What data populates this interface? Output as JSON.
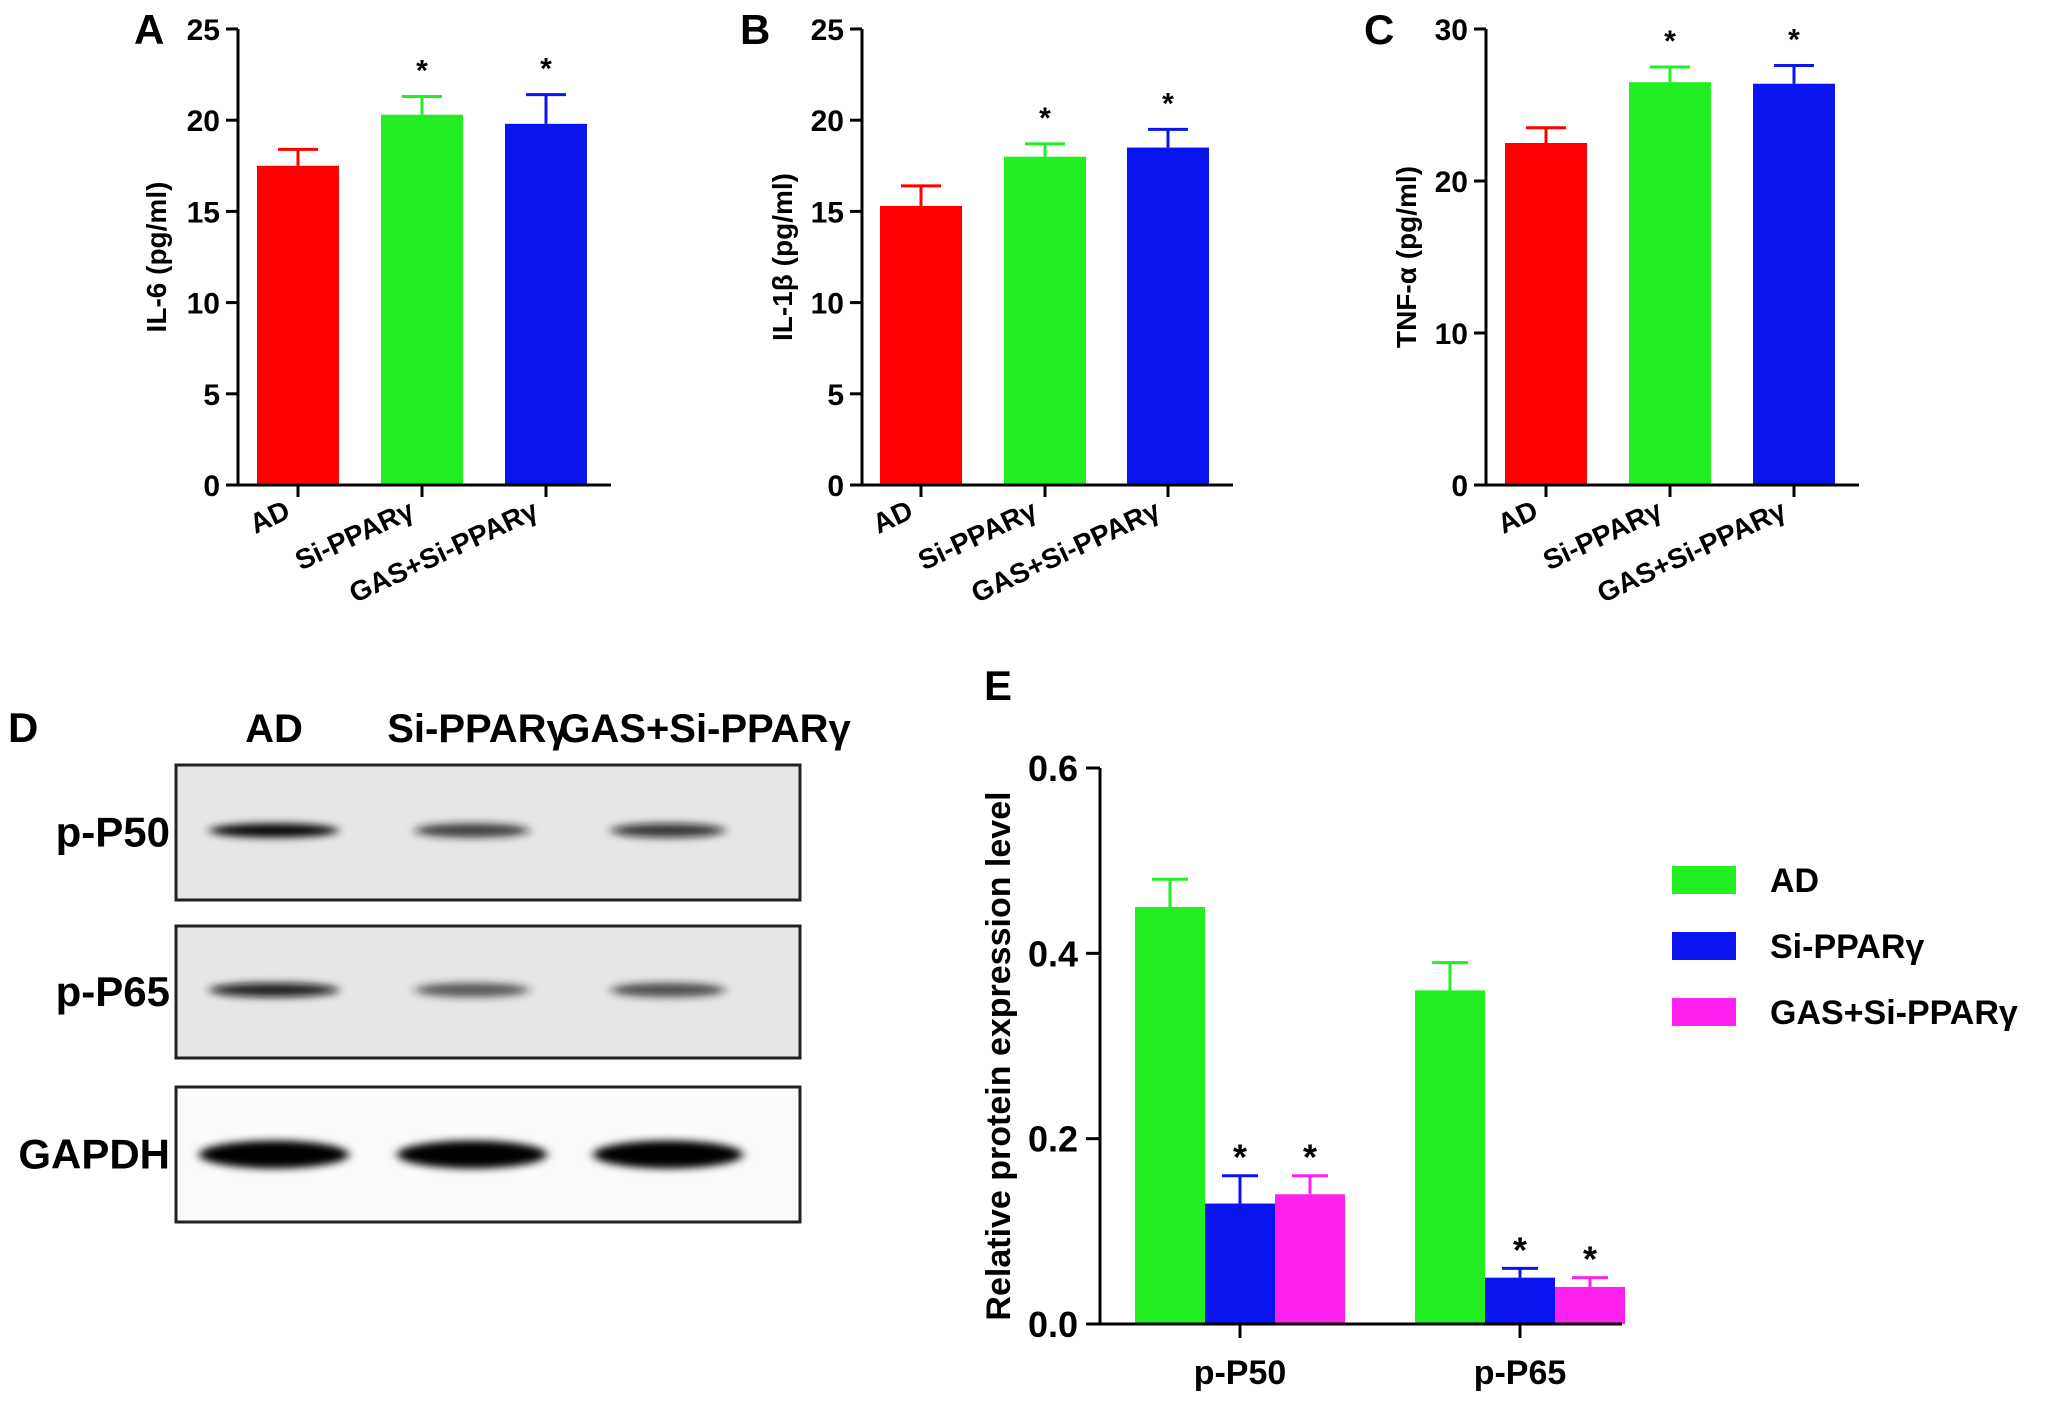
{
  "panels": {
    "A": "A",
    "B": "B",
    "C": "C",
    "D": "D",
    "E": "E"
  },
  "colors": {
    "red": "#ff0000",
    "green": "#22ee22",
    "blue": "#0a14ee",
    "magenta": "#ff22ee",
    "axis": "#000000"
  },
  "blot": {
    "lanes": [
      "AD",
      "Si-PPARγ",
      "GAS+Si-PPARγ"
    ],
    "rows": [
      {
        "label": "p-P50",
        "intensity": [
          0.95,
          0.7,
          0.72
        ]
      },
      {
        "label": "p-P65",
        "intensity": [
          0.88,
          0.55,
          0.6
        ]
      },
      {
        "label": "GAPDH",
        "intensity": [
          1.0,
          1.0,
          1.0
        ]
      }
    ]
  },
  "chart_data": [
    {
      "id": "A",
      "type": "bar",
      "title": "",
      "xlabel": "",
      "ylabel": "IL-6 (pg/ml)",
      "categories": [
        "AD",
        "Si-PPARγ",
        "GAS+Si-PPARγ"
      ],
      "values": [
        17.5,
        20.3,
        19.8
      ],
      "errors": [
        0.9,
        1.0,
        1.6
      ],
      "significance": [
        "",
        "*",
        "*"
      ],
      "bar_colors": [
        "#ff0000",
        "#22ee22",
        "#0a14ee"
      ],
      "ylim": [
        0,
        25
      ],
      "yticks": [
        0,
        5,
        10,
        15,
        20,
        25
      ],
      "grid": false
    },
    {
      "id": "B",
      "type": "bar",
      "title": "",
      "xlabel": "",
      "ylabel": "IL-1β (pg/ml)",
      "categories": [
        "AD",
        "Si-PPARγ",
        "GAS+Si-PPARγ"
      ],
      "values": [
        15.3,
        18.0,
        18.5
      ],
      "errors": [
        1.1,
        0.7,
        1.0
      ],
      "significance": [
        "",
        "*",
        "*"
      ],
      "bar_colors": [
        "#ff0000",
        "#22ee22",
        "#0a14ee"
      ],
      "ylim": [
        0,
        25
      ],
      "yticks": [
        0,
        5,
        10,
        15,
        20,
        25
      ],
      "grid": false
    },
    {
      "id": "C",
      "type": "bar",
      "title": "",
      "xlabel": "",
      "ylabel": "TNF-α (pg/ml)",
      "categories": [
        "AD",
        "Si-PPARγ",
        "GAS+Si-PPARγ"
      ],
      "values": [
        22.5,
        26.5,
        26.4
      ],
      "errors": [
        1.0,
        1.0,
        1.2
      ],
      "significance": [
        "",
        "*",
        "*"
      ],
      "bar_colors": [
        "#ff0000",
        "#22ee22",
        "#0a14ee"
      ],
      "ylim": [
        0,
        30
      ],
      "yticks": [
        0,
        10,
        20,
        30
      ],
      "grid": false
    },
    {
      "id": "E",
      "type": "bar",
      "title": "",
      "xlabel": "",
      "ylabel": "Relative protein expression level",
      "categories": [
        "p-P50",
        "p-P65"
      ],
      "series": [
        {
          "name": "AD",
          "color": "#22ee22",
          "values": [
            0.45,
            0.36
          ],
          "errors": [
            0.03,
            0.03
          ],
          "significance": [
            "",
            ""
          ]
        },
        {
          "name": "Si-PPARγ",
          "color": "#0a14ee",
          "values": [
            0.13,
            0.05
          ],
          "errors": [
            0.03,
            0.01
          ],
          "significance": [
            "*",
            "*"
          ]
        },
        {
          "name": "GAS+Si-PPARγ",
          "color": "#ff22ee",
          "values": [
            0.14,
            0.04
          ],
          "errors": [
            0.02,
            0.01
          ],
          "significance": [
            "*",
            "*"
          ]
        }
      ],
      "ylim": [
        0,
        0.6
      ],
      "yticks": [
        "0.0",
        "0.2",
        "0.4",
        "0.6"
      ],
      "legend": "right",
      "grid": false
    }
  ]
}
